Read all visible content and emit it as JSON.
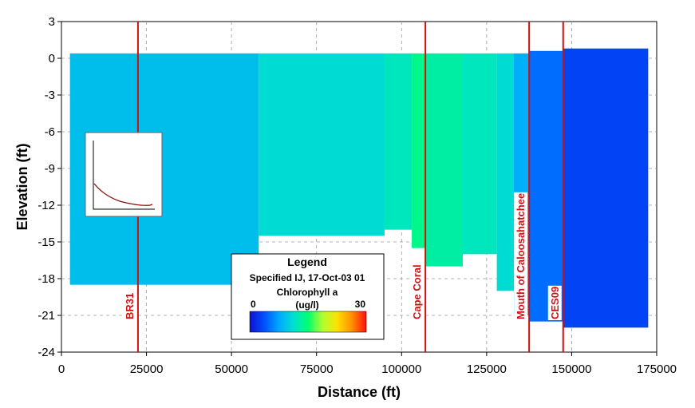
{
  "chart_data": {
    "type": "heatmap",
    "title": "",
    "xlabel": "Distance (ft)",
    "ylabel": "Elevation (ft)",
    "xlim": [
      0,
      175000
    ],
    "ylim": [
      -24,
      3
    ],
    "x_ticks": [
      0,
      25000,
      50000,
      75000,
      100000,
      125000,
      150000,
      175000
    ],
    "x_tick_labels": [
      "0",
      "25000",
      "50000",
      "75000",
      "100000",
      "125000",
      "150000",
      "175000"
    ],
    "y_ticks": [
      3,
      0,
      -3,
      -6,
      -9,
      -12,
      -15,
      -18,
      -21,
      -24
    ],
    "y_tick_labels": [
      "3",
      "0",
      "-3",
      "-6",
      "-9",
      "-12",
      "-15",
      "-18",
      "-21",
      "-24"
    ],
    "grid": true,
    "colorbar_range": [
      0,
      30
    ],
    "colorbar_colors": [
      "#1010d0",
      "#0050ff",
      "#00a8ff",
      "#00e0d0",
      "#00ff70",
      "#b0ff30",
      "#ffe000",
      "#ff9000",
      "#ff1010"
    ],
    "segments": [
      {
        "x0": 2500,
        "x1": 58000,
        "top": 0.4,
        "bottom": -18.5,
        "value": 9
      },
      {
        "x0": 58000,
        "x1": 95000,
        "top": 0.4,
        "bottom": -14.5,
        "value": 11
      },
      {
        "x0": 95000,
        "x1": 103000,
        "top": 0.4,
        "bottom": -14.0,
        "value": 12
      },
      {
        "x0": 103000,
        "x1": 107000,
        "top": 0.4,
        "bottom": -15.5,
        "value": 14
      },
      {
        "x0": 107000,
        "x1": 118000,
        "top": 0.4,
        "bottom": -17.0,
        "value": 13
      },
      {
        "x0": 118000,
        "x1": 128000,
        "top": 0.4,
        "bottom": -16.0,
        "value": 12
      },
      {
        "x0": 128000,
        "x1": 133000,
        "top": 0.4,
        "bottom": -19.0,
        "value": 11
      },
      {
        "x0": 133000,
        "x1": 137500,
        "top": 0.4,
        "bottom": -21.0,
        "value": 8
      },
      {
        "x0": 137500,
        "x1": 147500,
        "top": 0.6,
        "bottom": -21.5,
        "value": 5
      },
      {
        "x0": 147500,
        "x1": 172500,
        "top": 0.8,
        "bottom": -22.0,
        "value": 3
      }
    ],
    "stations": [
      {
        "label": "BR31",
        "x": 22500
      },
      {
        "label": "Cape Coral",
        "x": 107000
      },
      {
        "label": "Mouth of Caloosahatchee",
        "x": 137500
      },
      {
        "label": "CES09",
        "x": 147500
      }
    ],
    "legend": {
      "title": "Legend",
      "subtitle": "Specified IJ, 17-Oct-03 01",
      "variable": "Chlorophyll a",
      "units": "(ug/l)",
      "min_label": "0",
      "max_label": "30"
    }
  }
}
